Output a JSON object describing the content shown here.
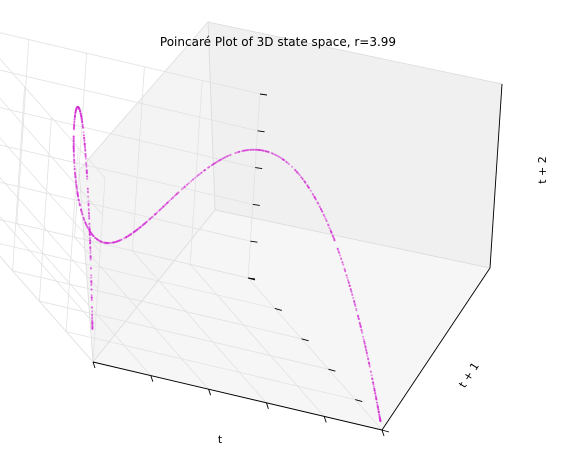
{
  "chart_data": {
    "type": "scatter3d",
    "title": "Poincaré Plot of 3D state space, r=3.99",
    "xlabel": "t",
    "ylabel": "t + 1",
    "zlabel": "t + 2",
    "r": 3.99,
    "map": "logistic",
    "point_color": "#cc00cc",
    "grid": true,
    "tick_labels_shown": false,
    "xlim": [
      0,
      1
    ],
    "ylim": [
      0,
      1
    ],
    "zlim": [
      0,
      1
    ]
  }
}
